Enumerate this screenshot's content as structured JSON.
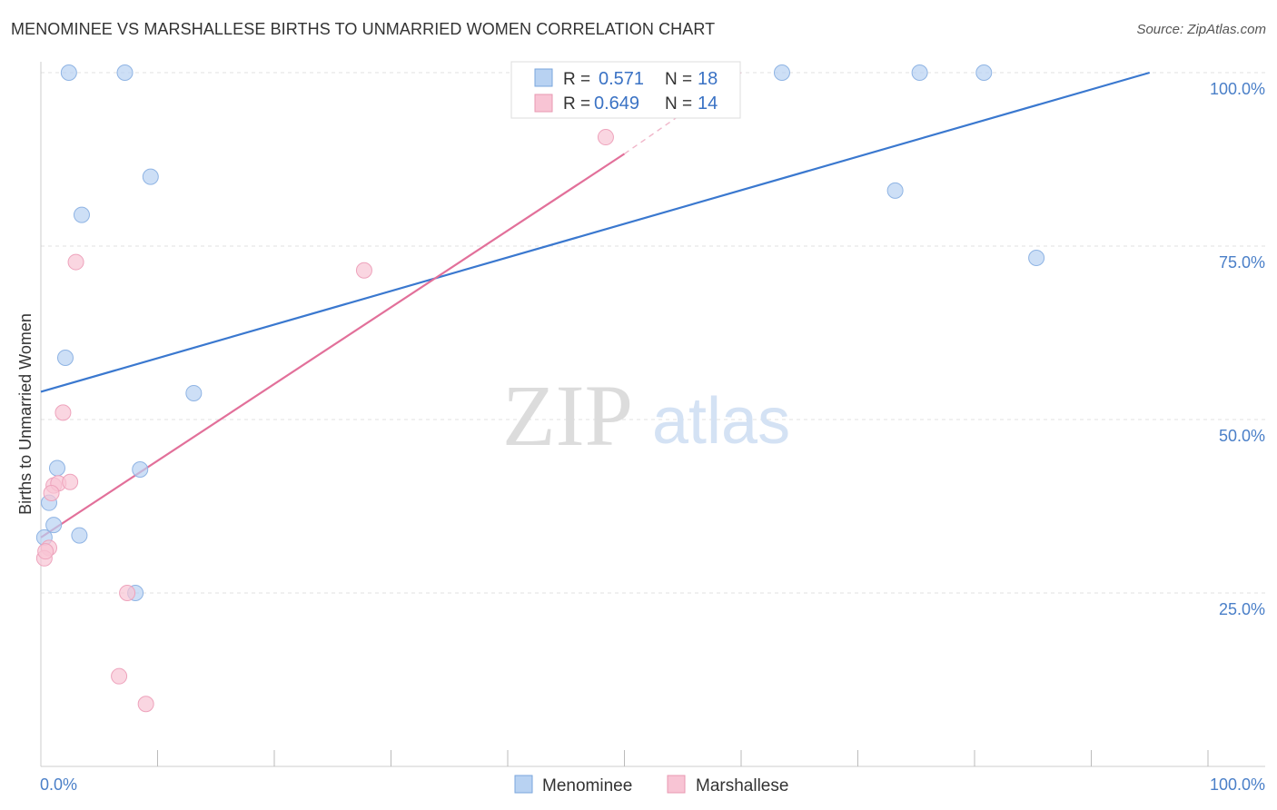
{
  "title": "MENOMINEE VS MARSHALLESE BIRTHS TO UNMARRIED WOMEN CORRELATION CHART",
  "source": "Source: ZipAtlas.com",
  "watermark": {
    "zip": "ZIP",
    "atlas": "atlas"
  },
  "chart_data": {
    "type": "scatter",
    "title": "MENOMINEE VS MARSHALLESE BIRTHS TO UNMARRIED WOMEN CORRELATION CHART",
    "xlabel": "",
    "ylabel": "Births to Unmarried Women",
    "xlim": [
      0,
      100
    ],
    "ylim": [
      0,
      100
    ],
    "x_tick_labels": {
      "left": "0.0%",
      "right": "100.0%"
    },
    "y_ticks": [
      {
        "value": 100,
        "label": "100.0%"
      },
      {
        "value": 75,
        "label": "75.0%"
      },
      {
        "value": 50,
        "label": "50.0%"
      },
      {
        "value": 25,
        "label": "25.0%"
      }
    ],
    "grid": true,
    "legend_position": "top-center",
    "colors": {
      "menominee": "#3a78cf",
      "menominee_fill": "#b8d2f2",
      "marshallese": "#e2709a",
      "marshallese_fill": "#f8c4d4",
      "tick": "#4a7fc8"
    },
    "series": [
      {
        "name": "Menominee",
        "r_label": "R =",
        "r_value": "0.571",
        "n_label": "N =",
        "n_value": "18",
        "trend": {
          "x": [
            0,
            95
          ],
          "y": [
            54,
            100
          ]
        },
        "points": [
          {
            "x": 2.4,
            "y": 100
          },
          {
            "x": 7.2,
            "y": 100
          },
          {
            "x": 63.5,
            "y": 100
          },
          {
            "x": 75.3,
            "y": 100
          },
          {
            "x": 80.8,
            "y": 100
          },
          {
            "x": 9.4,
            "y": 85
          },
          {
            "x": 3.5,
            "y": 79.5
          },
          {
            "x": 73.2,
            "y": 83
          },
          {
            "x": 85.3,
            "y": 73.3
          },
          {
            "x": 2.1,
            "y": 58.9
          },
          {
            "x": 13.1,
            "y": 53.8
          },
          {
            "x": 1.4,
            "y": 43
          },
          {
            "x": 8.5,
            "y": 42.8
          },
          {
            "x": 0.7,
            "y": 38
          },
          {
            "x": 1.1,
            "y": 34.8
          },
          {
            "x": 3.3,
            "y": 33.3
          },
          {
            "x": 8.1,
            "y": 25
          },
          {
            "x": 0.3,
            "y": 33
          }
        ]
      },
      {
        "name": "Marshallese",
        "r_label": "R =",
        "r_value": "0.649",
        "n_label": "N =",
        "n_value": "14",
        "trend": {
          "x": [
            0,
            50
          ],
          "y": [
            33,
            88.3
          ]
        },
        "trend_dashed": {
          "x": [
            50,
            60
          ],
          "y": [
            88.3,
            100
          ]
        },
        "points": [
          {
            "x": 48.4,
            "y": 90.7
          },
          {
            "x": 3.0,
            "y": 72.7
          },
          {
            "x": 27.7,
            "y": 71.5
          },
          {
            "x": 1.9,
            "y": 51
          },
          {
            "x": 1.1,
            "y": 40.5
          },
          {
            "x": 1.5,
            "y": 40.8
          },
          {
            "x": 2.5,
            "y": 41
          },
          {
            "x": 0.9,
            "y": 39.4
          },
          {
            "x": 0.7,
            "y": 31.5
          },
          {
            "x": 0.3,
            "y": 30
          },
          {
            "x": 7.4,
            "y": 25
          },
          {
            "x": 6.7,
            "y": 13
          },
          {
            "x": 9.0,
            "y": 9
          },
          {
            "x": 0.4,
            "y": 31
          }
        ]
      }
    ]
  }
}
